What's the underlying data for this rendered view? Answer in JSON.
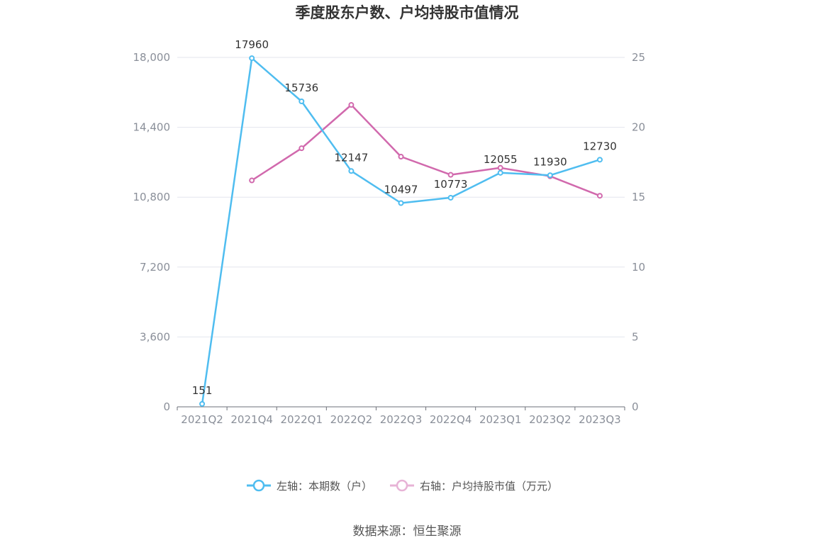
{
  "chart_data": {
    "type": "line",
    "title": "季度股东户数、户均持股市值情况",
    "categories": [
      "2021Q2",
      "2021Q4",
      "2022Q1",
      "2022Q2",
      "2022Q3",
      "2022Q4",
      "2023Q1",
      "2023Q2",
      "2023Q3"
    ],
    "y_left": {
      "ticks": [
        "0",
        "3,600",
        "7,200",
        "10,800",
        "14,400",
        "18,000"
      ],
      "range": [
        0,
        18000
      ]
    },
    "y_right": {
      "ticks": [
        "0",
        "5",
        "10",
        "15",
        "20",
        "25"
      ],
      "range": [
        0,
        25
      ]
    },
    "grid": true,
    "legend_position": "bottom",
    "series": [
      {
        "name": "左轴：本期数（户）",
        "axis": "left",
        "color": "#4fbdf0",
        "values": [
          151,
          17960,
          15736,
          12147,
          10497,
          10773,
          12055,
          11930,
          12730
        ],
        "labels": [
          "151",
          "17960",
          "15736",
          "12147",
          "10497",
          "10773",
          "12055",
          "11930",
          "12730"
        ]
      },
      {
        "name": "右轴：户均持股市值（万元）",
        "axis": "right",
        "color": "#d169ad",
        "values": [
          null,
          16.2,
          18.5,
          21.6,
          17.9,
          16.6,
          17.1,
          16.5,
          15.1
        ]
      }
    ]
  },
  "footer": {
    "source": "数据来源：恒生聚源"
  }
}
